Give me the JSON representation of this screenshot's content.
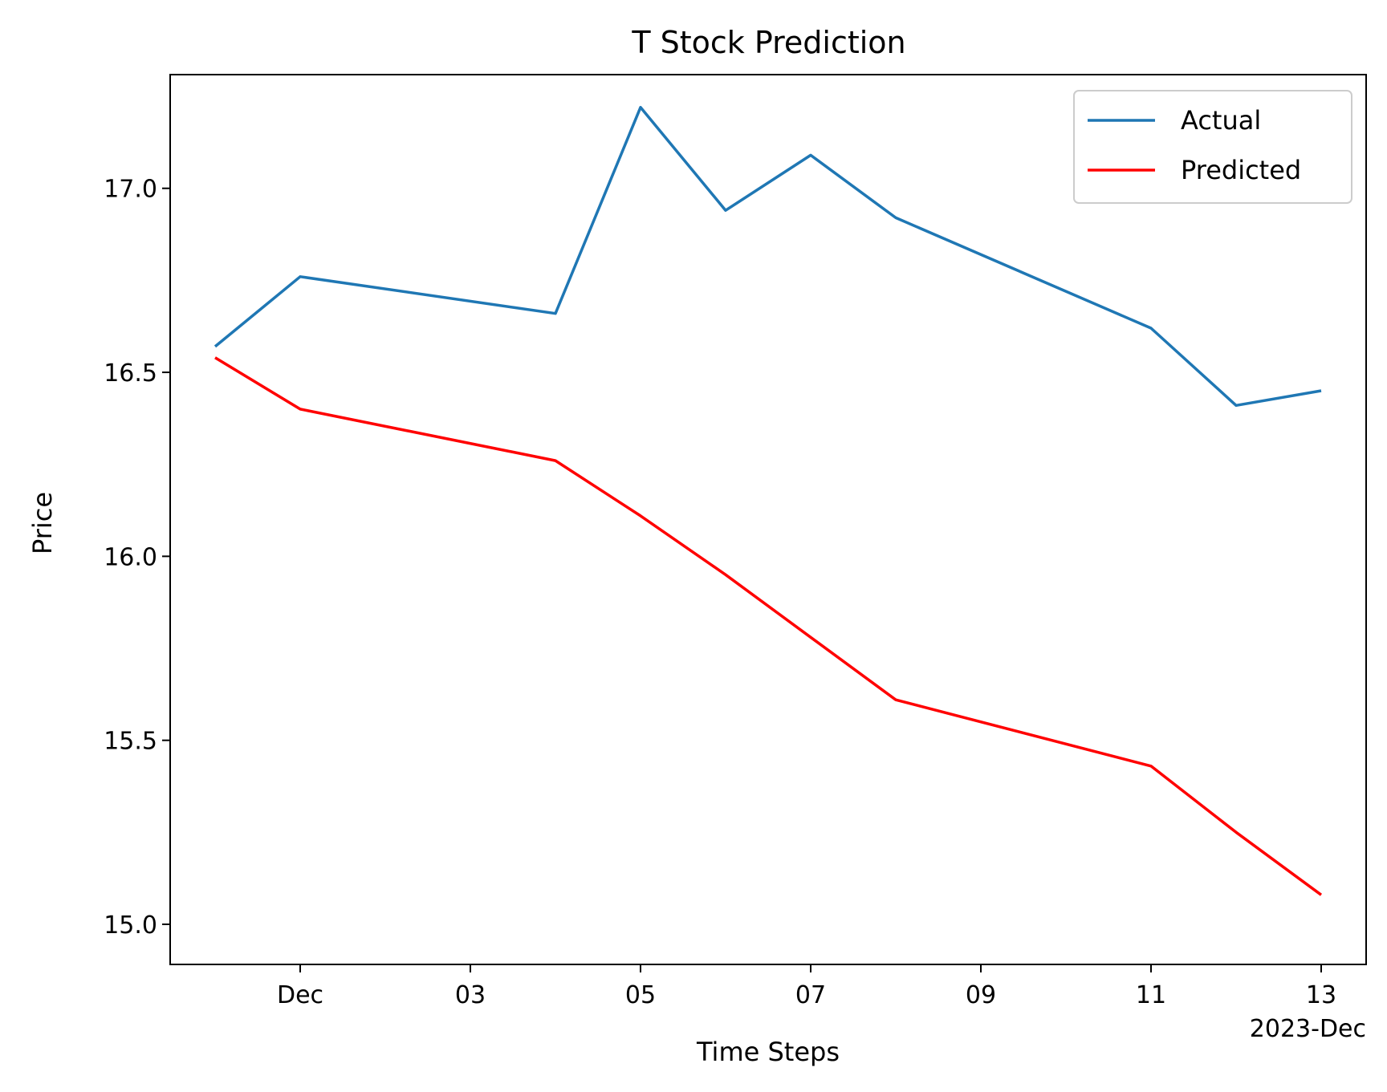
{
  "chart_data": {
    "type": "line",
    "title": "T Stock Prediction",
    "xlabel": "Time Steps",
    "ylabel": "Price",
    "x_offset_label": "2023-Dec",
    "xlim": [
      "2023-11-30",
      "2023-12-13"
    ],
    "ylim": [
      15.0,
      17.2
    ],
    "x_ticks": [
      {
        "value": "2023-12-01",
        "label": "Dec"
      },
      {
        "value": "2023-12-03",
        "label": "03"
      },
      {
        "value": "2023-12-05",
        "label": "05"
      },
      {
        "value": "2023-12-07",
        "label": "07"
      },
      {
        "value": "2023-12-09",
        "label": "09"
      },
      {
        "value": "2023-12-11",
        "label": "11"
      },
      {
        "value": "2023-12-13",
        "label": "13"
      }
    ],
    "y_ticks": [
      {
        "value": 15.0,
        "label": "15.0"
      },
      {
        "value": 15.5,
        "label": "15.5"
      },
      {
        "value": 16.0,
        "label": "16.0"
      },
      {
        "value": 16.5,
        "label": "16.5"
      },
      {
        "value": 17.0,
        "label": "17.0"
      }
    ],
    "x": [
      "2023-11-30",
      "2023-12-01",
      "2023-12-04",
      "2023-12-05",
      "2023-12-06",
      "2023-12-07",
      "2023-12-08",
      "2023-12-11",
      "2023-12-12",
      "2023-12-13"
    ],
    "grid": false,
    "legend_position": "top-right",
    "series": [
      {
        "name": "Actual",
        "color": "#1f77b4",
        "values": [
          16.57,
          16.76,
          16.66,
          17.22,
          16.94,
          17.09,
          16.92,
          16.62,
          16.41,
          16.45
        ]
      },
      {
        "name": "Predicted",
        "color": "#ff0000",
        "values": [
          16.54,
          16.4,
          16.26,
          16.11,
          15.95,
          15.78,
          15.61,
          15.43,
          15.25,
          15.08
        ]
      }
    ]
  }
}
